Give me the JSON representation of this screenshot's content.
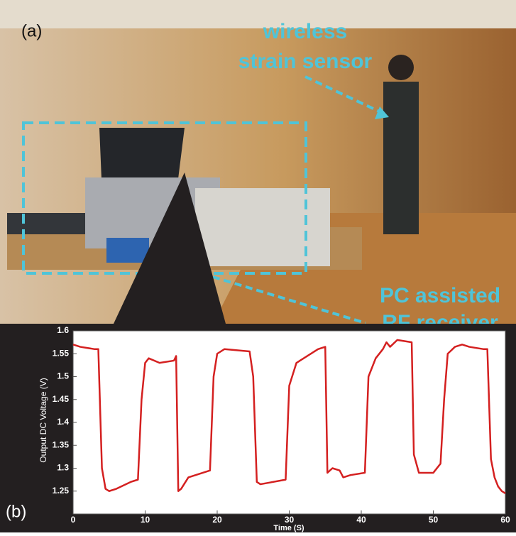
{
  "panel_a": {
    "label": "(a)",
    "sensor_label": [
      "wireless",
      "strain sensor"
    ],
    "receiver_label": [
      "PC assisted",
      "RF receiver"
    ]
  },
  "chart_data": {
    "type": "line",
    "panel_label": "(b)",
    "x_label": "Time (S)",
    "y_label": "Output DC Voltage (V)",
    "xlim": [
      0,
      60
    ],
    "ylim": [
      1.2,
      1.6
    ],
    "xticks": [
      0,
      10,
      20,
      30,
      40,
      50,
      60
    ],
    "yticks": [
      1.25,
      1.3,
      1.35,
      1.4,
      1.45,
      1.5,
      1.55,
      1.6
    ],
    "series": [
      {
        "color": "#d42020",
        "x": [
          0,
          1,
          3,
          3.5,
          4,
          4.5,
          5,
          6,
          8,
          9,
          9.5,
          10,
          10.5,
          12,
          14,
          14.3,
          14.6,
          15,
          16,
          19,
          19.5,
          20,
          21,
          24.5,
          25,
          25.5,
          26,
          29.5,
          30,
          31,
          34,
          35,
          35.3,
          36,
          37,
          37.5,
          38.5,
          40.5,
          41,
          42,
          43,
          43.5,
          44,
          45,
          47,
          47.3,
          48,
          50,
          51,
          51.5,
          52,
          53,
          54,
          55,
          57,
          57.5,
          58,
          58.5,
          59,
          59.5,
          60
        ],
        "values": [
          1.57,
          1.565,
          1.56,
          1.56,
          1.3,
          1.255,
          1.25,
          1.255,
          1.27,
          1.275,
          1.45,
          1.53,
          1.54,
          1.53,
          1.535,
          1.545,
          1.25,
          1.255,
          1.28,
          1.295,
          1.5,
          1.55,
          1.56,
          1.555,
          1.5,
          1.27,
          1.265,
          1.275,
          1.48,
          1.53,
          1.56,
          1.565,
          1.29,
          1.3,
          1.295,
          1.28,
          1.285,
          1.29,
          1.5,
          1.54,
          1.56,
          1.575,
          1.565,
          1.58,
          1.575,
          1.33,
          1.29,
          1.29,
          1.31,
          1.45,
          1.55,
          1.565,
          1.57,
          1.565,
          1.56,
          1.56,
          1.32,
          1.28,
          1.26,
          1.25,
          1.245
        ]
      }
    ]
  }
}
